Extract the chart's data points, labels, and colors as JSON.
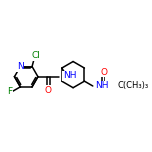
{
  "bg_color": "#ffffff",
  "bond_color": "#000000",
  "atom_colors": {
    "N": "#0000ff",
    "O": "#ff0000",
    "F": "#008000",
    "Cl": "#008000",
    "C": "#000000"
  },
  "bond_width": 1.1,
  "figsize": [
    1.52,
    1.52
  ],
  "dpi": 100,
  "xlim": [
    0,
    152
  ],
  "ylim": [
    0,
    152
  ]
}
